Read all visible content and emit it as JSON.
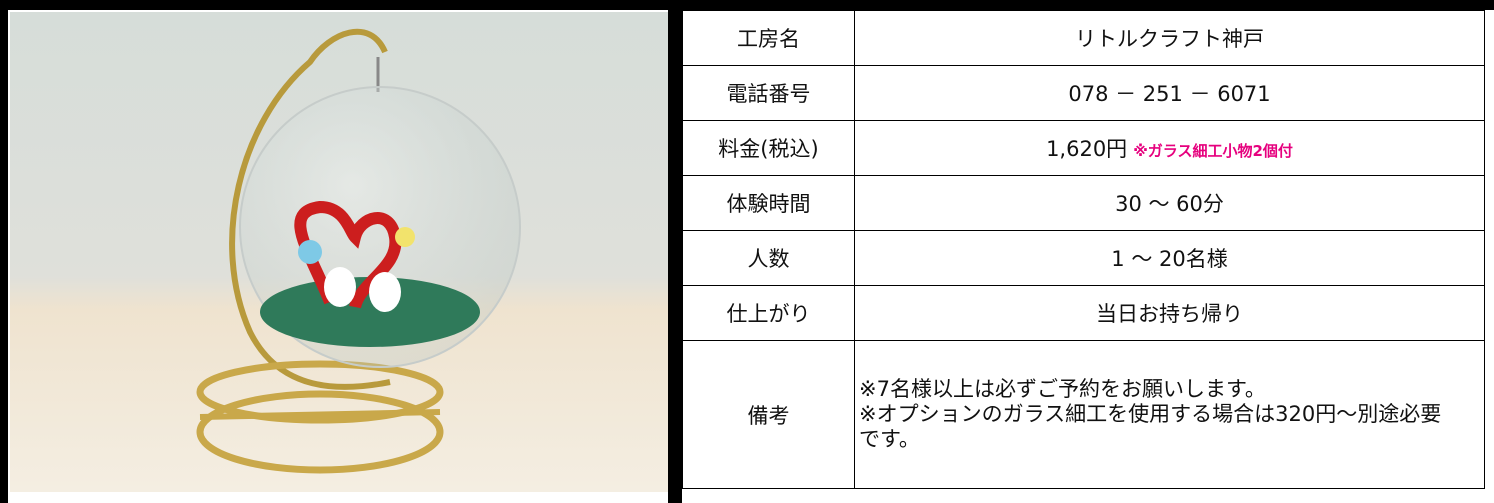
{
  "table": {
    "rows": [
      {
        "label": "工房名",
        "value": "リトルクラフト神戸"
      },
      {
        "label": "電話番号",
        "value": "078 － 251 － 6071"
      },
      {
        "label": "料金(税込)",
        "value": "1,620円",
        "note": "※ガラス細工小物2個付"
      },
      {
        "label": "体験時間",
        "value": "30 ～ 60分"
      },
      {
        "label": "人数",
        "value": "1 ～ 20名様"
      },
      {
        "label": "仕上がり",
        "value": "当日お持ち帰り"
      },
      {
        "label": "備考",
        "lines": [
          "※7名様以上は必ずご予約をお願いします。",
          "※オプションのガラス細工を使用する場合は320円～別途必要です。"
        ]
      }
    ]
  }
}
